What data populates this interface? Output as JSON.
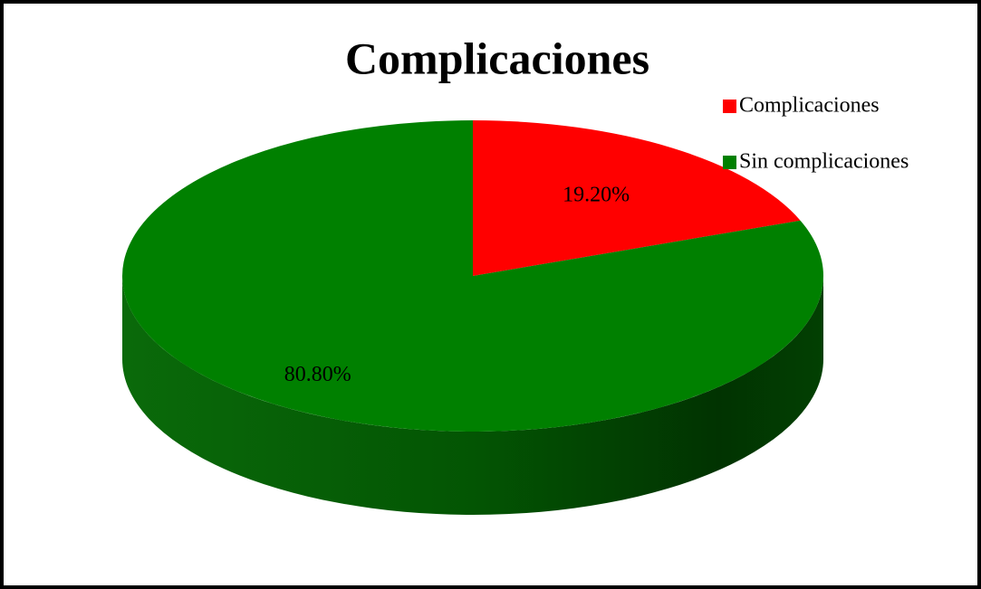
{
  "chart_data": {
    "type": "pie",
    "title": "Complicaciones",
    "categories": [
      "Complicaciones",
      "Sin complicaciones"
    ],
    "values": [
      19.2,
      80.8
    ],
    "value_labels": [
      "19.20%",
      "80.80%"
    ],
    "colors": [
      "#ff0000",
      "#008000"
    ],
    "legend": "top-right"
  }
}
